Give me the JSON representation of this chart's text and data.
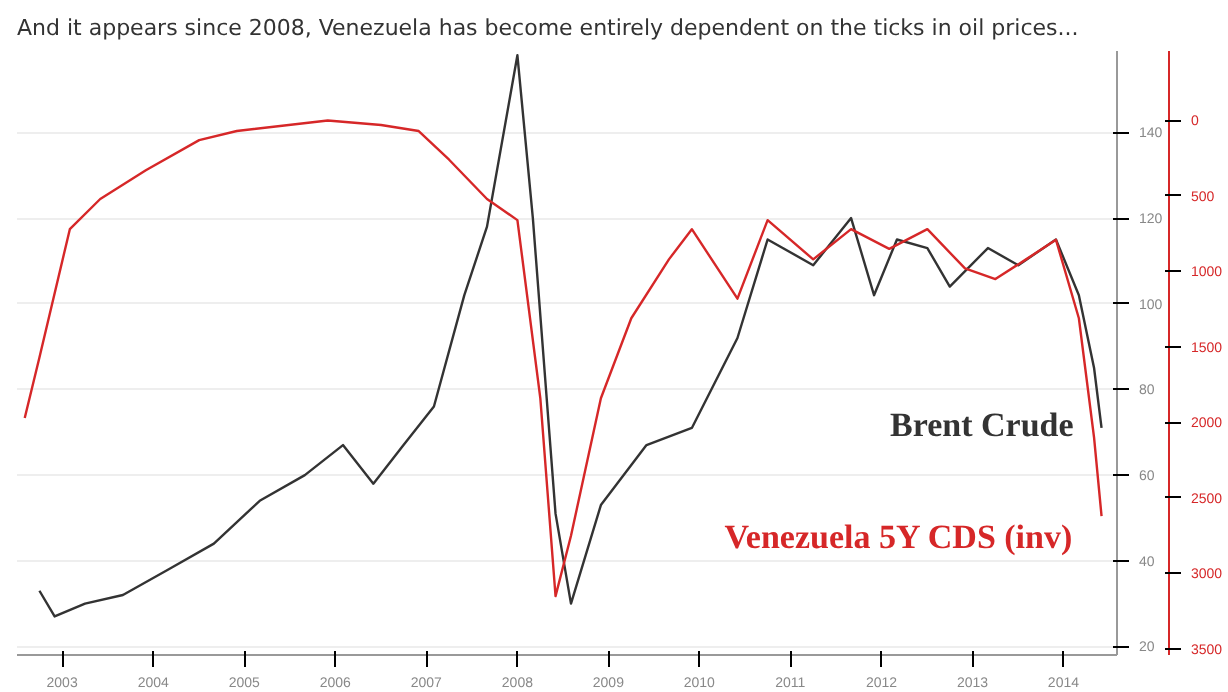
{
  "chart_data": {
    "type": "line",
    "title": "And it appears since 2008, Venezuela has become entirely dependent on the ticks in oil prices...",
    "series": [
      {
        "name": "Brent Crude",
        "color": "#333333",
        "x": [
          "2003-04",
          "2003-06",
          "2003-10",
          "2004-03",
          "2004-09",
          "2005-03",
          "2005-09",
          "2006-03",
          "2006-08",
          "2006-12",
          "2007-04",
          "2007-08",
          "2007-12",
          "2008-03",
          "2008-07",
          "2008-09",
          "2008-12",
          "2009-02",
          "2009-06",
          "2009-12",
          "2010-06",
          "2010-12",
          "2011-04",
          "2011-10",
          "2012-03",
          "2012-06",
          "2012-09",
          "2013-01",
          "2013-04",
          "2013-09",
          "2014-01",
          "2014-06",
          "2014-09",
          "2014-11",
          "2014-12"
        ],
        "values": [
          33,
          27,
          30,
          32,
          38,
          44,
          54,
          60,
          67,
          58,
          67,
          76,
          102,
          118,
          158,
          120,
          51,
          30,
          53,
          67,
          71,
          92,
          115,
          109,
          120,
          102,
          115,
          113,
          104,
          113,
          109,
          115,
          102,
          85,
          71
        ]
      },
      {
        "name": "Venezuela 5Y CDS (inv)",
        "color": "#d62728",
        "axis": "y2",
        "x": [
          "2003-02",
          "2003-04",
          "2003-08",
          "2003-12",
          "2004-06",
          "2005-01",
          "2005-06",
          "2006-06",
          "2007-01",
          "2007-06",
          "2007-10",
          "2008-03",
          "2008-07",
          "2008-10",
          "2008-12",
          "2009-02",
          "2009-06",
          "2009-10",
          "2010-03",
          "2010-06",
          "2010-12",
          "2011-04",
          "2011-10",
          "2012-03",
          "2012-08",
          "2013-01",
          "2013-06",
          "2013-10",
          "2014-02",
          "2014-06",
          "2014-09",
          "2014-11",
          "2014-12"
        ],
        "values": [
          1970,
          1570,
          720,
          520,
          330,
          130,
          70,
          0,
          30,
          70,
          260,
          520,
          660,
          1840,
          3150,
          2750,
          1840,
          1310,
          920,
          720,
          1180,
          660,
          920,
          720,
          850,
          720,
          980,
          1050,
          920,
          790,
          1310,
          2100,
          2620
        ]
      }
    ],
    "xlim": [
      "2003-01",
      "2015-02"
    ],
    "xticks": [
      {
        "value": "2003-07-01",
        "label": "2003"
      },
      {
        "value": "2004-07-01",
        "label": "2004"
      },
      {
        "value": "2005-07-01",
        "label": "2005"
      },
      {
        "value": "2006-07-01",
        "label": "2006"
      },
      {
        "value": "2007-07-01",
        "label": "2007"
      },
      {
        "value": "2008-07-01",
        "label": "2008"
      },
      {
        "value": "2009-07-01",
        "label": "2009"
      },
      {
        "value": "2010-07-01",
        "label": "2010"
      },
      {
        "value": "2011-07-01",
        "label": "2011"
      },
      {
        "value": "2012-07-01",
        "label": "2012"
      },
      {
        "value": "2013-07-01",
        "label": "2013"
      },
      {
        "value": "2014-07-01",
        "label": "2014"
      }
    ],
    "ylim": [
      18,
      159
    ],
    "yticks": [
      20,
      40,
      60,
      80,
      100,
      120,
      140
    ],
    "y2lim": [
      3540,
      -460
    ],
    "y2ticks": [
      0,
      500,
      1000,
      1500,
      2000,
      2500,
      3000,
      3500
    ],
    "grid": "y"
  }
}
